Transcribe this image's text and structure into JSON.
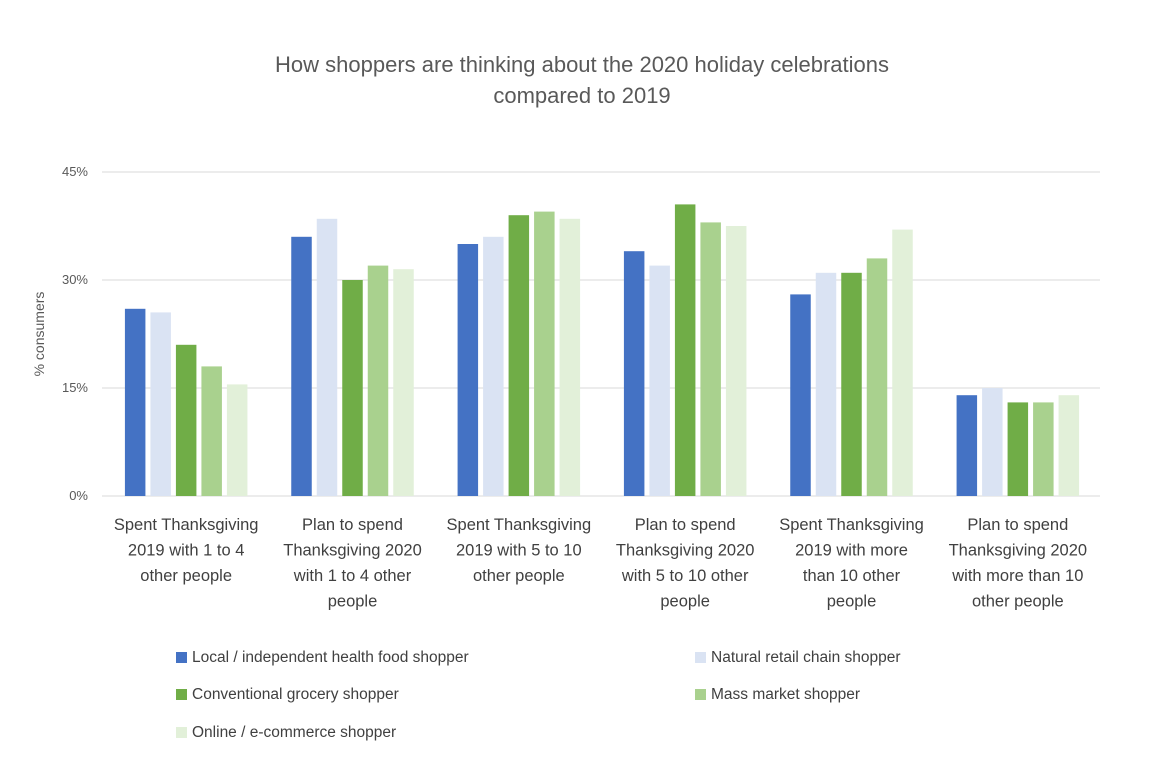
{
  "chart_data": {
    "type": "bar",
    "title": "How shoppers are thinking about the 2020 holiday celebrations compared to 2019",
    "title_lines": [
      "How shoppers are thinking about the 2020 holiday celebrations",
      "compared to 2019"
    ],
    "xlabel": "",
    "ylabel": "% consumers",
    "ylim": [
      0,
      45
    ],
    "yticks": [
      "0%",
      "15%",
      "30%",
      "45%"
    ],
    "ytick_values": [
      0,
      15,
      30,
      45
    ],
    "grid": true,
    "legend_position": "bottom",
    "categories": [
      "Spent Thanksgiving 2019 with 1 to 4 other people",
      "Plan to spend Thanksgiving 2020 with 1 to 4 other people",
      "Spent Thanksgiving 2019 with 5 to 10 other people",
      "Plan to spend Thanksgiving 2020 with 5 to 10 other people",
      "Spent Thanksgiving 2019 with more than 10 other people",
      "Plan to spend Thanksgiving 2020 with more than 10 other people"
    ],
    "category_lines": [
      [
        "Spent Thanksgiving",
        "2019 with 1 to 4",
        "other people"
      ],
      [
        "Plan to spend",
        "Thanksgiving 2020",
        "with 1 to 4 other",
        "people"
      ],
      [
        "Spent Thanksgiving",
        "2019 with 5 to 10",
        "other people"
      ],
      [
        "Plan to spend",
        "Thanksgiving 2020",
        "with 5 to 10 other",
        "people"
      ],
      [
        "Spent Thanksgiving",
        "2019 with more",
        "than 10 other",
        "people"
      ],
      [
        "Plan to spend",
        "Thanksgiving 2020",
        "with more than 10",
        "other people"
      ]
    ],
    "series": [
      {
        "name": "Local / independent health food shopper",
        "color": "#4472c4",
        "values": [
          26,
          36,
          35,
          34,
          28,
          14
        ]
      },
      {
        "name": "Natural retail chain shopper",
        "color": "#dae3f3",
        "values": [
          25.5,
          38.5,
          36,
          32,
          31,
          15
        ]
      },
      {
        "name": "Conventional grocery shopper",
        "color": "#70ad47",
        "values": [
          21,
          30,
          39,
          40.5,
          31,
          13
        ]
      },
      {
        "name": "Mass market shopper",
        "color": "#a9d18e",
        "values": [
          18,
          32,
          39.5,
          38,
          33,
          13
        ]
      },
      {
        "name": "Online / e-commerce shopper",
        "color": "#e2f0d9",
        "values": [
          15.5,
          31.5,
          38.5,
          37.5,
          37,
          14
        ]
      }
    ]
  }
}
